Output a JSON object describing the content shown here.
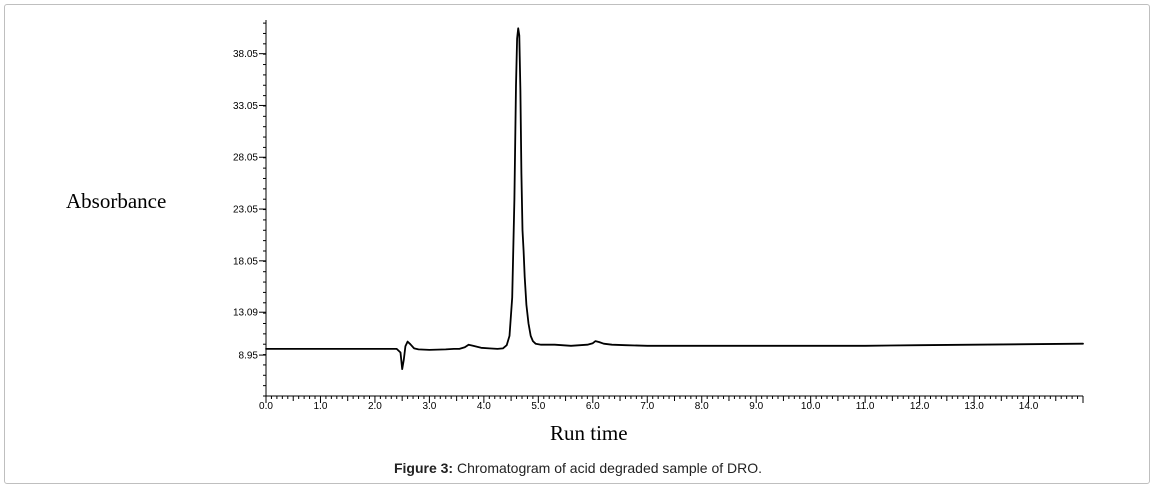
{
  "chart_data": {
    "type": "line",
    "title": "",
    "xlabel": "Run time",
    "ylabel": "Absorbance",
    "xlim": [
      0.0,
      15.0
    ],
    "ylim": [
      5.0,
      41.3
    ],
    "xticks": [
      0.0,
      1.0,
      2.0,
      3.0,
      4.0,
      5.0,
      6.0,
      7.0,
      8.0,
      9.0,
      10.0,
      11.0,
      12.0,
      13.0,
      14.0
    ],
    "xtick_labels": [
      "0.0",
      "1.0",
      "2.0",
      "3.0",
      "4.0",
      "5.0",
      "6.0",
      "7.0",
      "8.0",
      "9.0",
      "10.0",
      "11.0",
      "12.0",
      "13.0",
      "14.0"
    ],
    "yticks": [
      8.95,
      13.09,
      18.05,
      23.05,
      28.05,
      33.05,
      38.05
    ],
    "ytick_labels": [
      "8.95",
      "13.09",
      "18.05",
      "23.05",
      "28.05",
      "33.05",
      "38.05"
    ],
    "grid": false,
    "series": [
      {
        "x": [
          0.0,
          0.5,
          1.0,
          1.5,
          2.0,
          2.4,
          2.47,
          2.5,
          2.53,
          2.56,
          2.6,
          2.65,
          2.72,
          2.8,
          3.0,
          3.3,
          3.45,
          3.55,
          3.65,
          3.72,
          3.8,
          3.95,
          4.1,
          4.25,
          4.35,
          4.42,
          4.47,
          4.52,
          4.56,
          4.59,
          4.61,
          4.63,
          4.65,
          4.67,
          4.69,
          4.71,
          4.73,
          4.75,
          4.78,
          4.82,
          4.86,
          4.9,
          4.95,
          5.05,
          5.3,
          5.6,
          5.9,
          6.0,
          6.05,
          6.12,
          6.2,
          6.35,
          6.6,
          7.0,
          8.0,
          9.0,
          10.0,
          11.0,
          12.0,
          13.0,
          14.0,
          15.0
        ],
        "y": [
          9.55,
          9.55,
          9.55,
          9.55,
          9.55,
          9.55,
          9.2,
          7.6,
          8.5,
          9.8,
          10.25,
          10.0,
          9.6,
          9.5,
          9.45,
          9.5,
          9.55,
          9.55,
          9.7,
          9.95,
          9.85,
          9.65,
          9.6,
          9.55,
          9.6,
          9.9,
          10.8,
          14.5,
          24.0,
          35.0,
          39.5,
          40.5,
          39.8,
          34.5,
          26.5,
          21.0,
          19.0,
          16.5,
          13.8,
          12.0,
          10.8,
          10.3,
          10.05,
          9.95,
          9.95,
          9.85,
          9.95,
          10.1,
          10.3,
          10.2,
          10.05,
          9.95,
          9.9,
          9.85,
          9.85,
          9.85,
          9.85,
          9.85,
          9.9,
          9.95,
          10.0,
          10.05
        ]
      }
    ]
  },
  "caption": {
    "prefix": "Figure 3:",
    "text": " Chromatogram of acid degraded sample of DRO."
  }
}
